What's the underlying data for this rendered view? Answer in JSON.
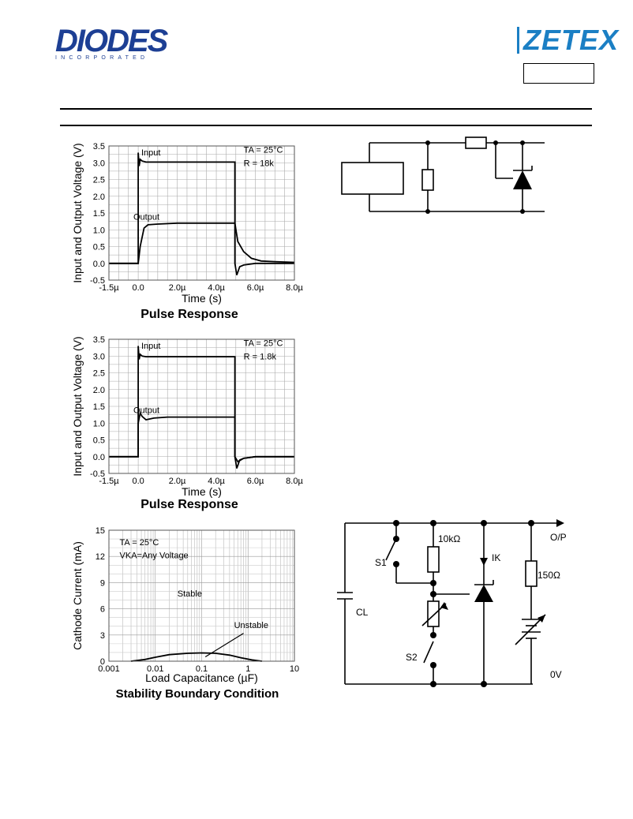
{
  "header": {
    "diodes_logo": "DIODES",
    "diodes_sub": "INCORPORATED",
    "zetex_logo": "ZETEX"
  },
  "chart_data": [
    {
      "type": "line",
      "title": "Pulse Response",
      "xlabel": "Time (s)",
      "ylabel": "Input and Output Voltage (V)",
      "xlim": [
        -1.5,
        8.0
      ],
      "ylim": [
        -0.5,
        3.5
      ],
      "x_ticks": [
        "-1.5µ",
        "0.0",
        "2.0µ",
        "4.0µ",
        "6.0µ",
        "8.0µ"
      ],
      "x_tick_values": [
        -1.5,
        0.0,
        2.0,
        4.0,
        6.0,
        8.0
      ],
      "y_ticks": [
        "3.5",
        "3.0",
        "2.5",
        "2.0",
        "1.5",
        "1.0",
        "0.5",
        "0.0",
        "-0.5"
      ],
      "grid": true,
      "annotations": [
        "TA = 25°C",
        "R = 18k"
      ],
      "series": [
        {
          "name": "Input",
          "x": [
            -1.5,
            0.0,
            0.0,
            0.05,
            0.1,
            0.2,
            0.4,
            4.95,
            4.95,
            5.05,
            5.2,
            5.4,
            6.0,
            8.0
          ],
          "y": [
            0.0,
            0.0,
            3.3,
            2.9,
            3.1,
            3.05,
            3.02,
            3.02,
            0.0,
            -0.35,
            -0.1,
            -0.05,
            0.0,
            0.0
          ]
        },
        {
          "name": "Output",
          "x": [
            -1.5,
            0.0,
            0.1,
            0.3,
            0.5,
            1.0,
            2.0,
            4.95,
            5.1,
            5.4,
            5.8,
            6.3,
            7.0,
            8.0
          ],
          "y": [
            0.0,
            0.0,
            0.5,
            1.05,
            1.15,
            1.17,
            1.2,
            1.2,
            0.65,
            0.35,
            0.15,
            0.07,
            0.05,
            0.03
          ]
        }
      ]
    },
    {
      "type": "line",
      "title": "Pulse Response",
      "xlabel": "Time (s)",
      "ylabel": "Input and Output Voltage (V)",
      "xlim": [
        -1.5,
        8.0
      ],
      "ylim": [
        -0.5,
        3.5
      ],
      "x_ticks": [
        "-1.5µ",
        "0.0",
        "2.0µ",
        "4.0µ",
        "6.0µ",
        "8.0µ"
      ],
      "x_tick_values": [
        -1.5,
        0.0,
        2.0,
        4.0,
        6.0,
        8.0
      ],
      "y_ticks": [
        "3.5",
        "3.0",
        "2.5",
        "2.0",
        "1.5",
        "1.0",
        "0.5",
        "0.0",
        "-0.5"
      ],
      "grid": true,
      "annotations": [
        "TA = 25°C",
        "R = 1.8k"
      ],
      "series": [
        {
          "name": "Input",
          "x": [
            -1.5,
            0.0,
            0.0,
            0.05,
            0.1,
            0.2,
            0.4,
            4.95,
            4.95,
            5.05,
            5.2,
            5.4,
            6.0,
            8.0
          ],
          "y": [
            0.0,
            0.0,
            3.3,
            2.9,
            3.05,
            3.0,
            2.98,
            2.98,
            0.0,
            -0.35,
            -0.1,
            -0.05,
            0.0,
            0.0
          ]
        },
        {
          "name": "Output",
          "x": [
            -1.5,
            0.0,
            0.0,
            0.1,
            0.2,
            0.4,
            0.8,
            1.5,
            4.95,
            4.95,
            5.1,
            5.4,
            6.0,
            8.0
          ],
          "y": [
            0.0,
            0.0,
            1.0,
            1.3,
            1.2,
            1.1,
            1.15,
            1.18,
            1.18,
            0.0,
            -0.15,
            -0.05,
            0.0,
            0.0
          ]
        }
      ]
    },
    {
      "type": "line",
      "title": "Stability Boundary Condition",
      "xlabel": "Load Capacitance (µF)",
      "ylabel": "Cathode Current (mA)",
      "xscale": "log",
      "xlim": [
        0.001,
        10
      ],
      "ylim": [
        0,
        15
      ],
      "x_ticks": [
        "0.001",
        "0.01",
        "0.1",
        "1",
        "10"
      ],
      "x_tick_values": [
        0.001,
        0.01,
        0.1,
        1,
        10
      ],
      "y_ticks": [
        "15",
        "12",
        "9",
        "6",
        "3",
        "0"
      ],
      "grid": true,
      "annotations": [
        "TA = 25°C",
        "VKA=Any Voltage",
        "Stable",
        "Unstable"
      ],
      "series": [
        {
          "name": "Boundary",
          "x": [
            0.003,
            0.006,
            0.01,
            0.02,
            0.05,
            0.1,
            0.2,
            0.4,
            0.7,
            1.2,
            2.0
          ],
          "y": [
            0.0,
            0.2,
            0.45,
            0.75,
            0.9,
            0.95,
            0.9,
            0.7,
            0.4,
            0.15,
            0.0
          ]
        }
      ]
    }
  ],
  "circuit1": {
    "labels": []
  },
  "circuit2": {
    "labels": {
      "r1": "10kΩ",
      "ik": "IK",
      "op": "O/P",
      "r2": "150Ω",
      "s1": "S1",
      "s2": "S2",
      "cl": "CL",
      "zero": "0V"
    }
  }
}
